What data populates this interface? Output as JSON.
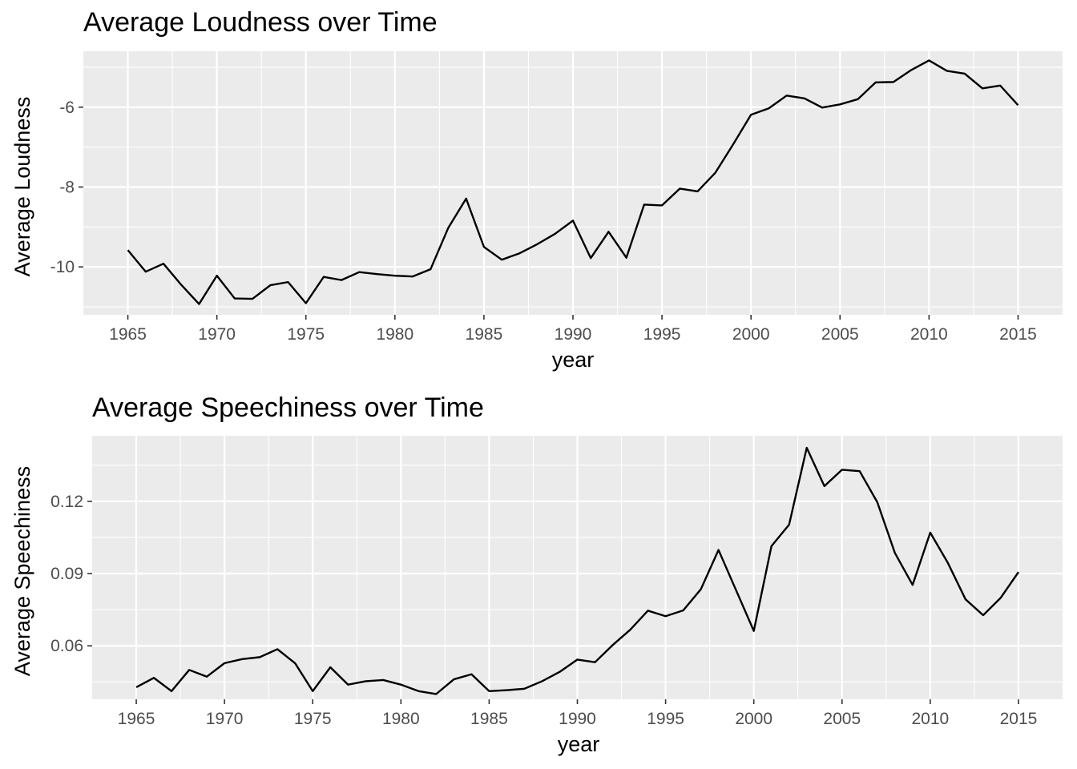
{
  "chart_data": [
    {
      "type": "line",
      "title": "Average Loudness over Time",
      "xlabel": "year",
      "ylabel": "Average Loudness",
      "xlim": [
        1962.5,
        1917.5
      ],
      "ylim": [
        -11.2,
        -4.6
      ],
      "x_ticks": [
        1965,
        1970,
        1975,
        1980,
        1985,
        1990,
        1995,
        2000,
        2005,
        2010,
        2015
      ],
      "x_tick_labels": [
        "1965",
        "1970",
        "1975",
        "1980",
        "1985",
        "1990",
        "1995",
        "2000",
        "2005",
        "2010",
        "2015"
      ],
      "y_ticks": [
        -10,
        -8,
        -6
      ],
      "y_tick_labels": [
        "-10",
        "-8",
        "-6"
      ],
      "grid": true,
      "colors": {
        "panel": "#ebebeb",
        "grid": "#ffffff",
        "line": "#000000"
      },
      "x": [
        1965,
        1966,
        1967,
        1968,
        1969,
        1970,
        1971,
        1972,
        1973,
        1974,
        1975,
        1976,
        1977,
        1978,
        1979,
        1980,
        1981,
        1982,
        1983,
        1984,
        1985,
        1986,
        1987,
        1988,
        1989,
        1990,
        1991,
        1992,
        1993,
        1994,
        1995,
        1996,
        1997,
        1998,
        1999,
        2000,
        2001,
        2002,
        2003,
        2004,
        2005,
        2006,
        2007,
        2008,
        2009,
        2010,
        2011,
        2012,
        2013,
        2014,
        2015
      ],
      "series": [
        {
          "values": [
            -9.58,
            -10.12,
            -9.92,
            -10.45,
            -10.93,
            -10.22,
            -10.79,
            -10.8,
            -10.46,
            -10.38,
            -10.91,
            -10.25,
            -10.33,
            -10.13,
            -10.18,
            -10.22,
            -10.24,
            -10.06,
            -9.02,
            -8.29,
            -9.5,
            -9.82,
            -9.66,
            -9.43,
            -9.17,
            -8.84,
            -9.78,
            -9.12,
            -9.77,
            -8.44,
            -8.46,
            -8.04,
            -8.11,
            -7.64,
            -6.93,
            -6.19,
            -6.03,
            -5.71,
            -5.78,
            -6.01,
            -5.93,
            -5.8,
            -5.38,
            -5.37,
            -5.07,
            -4.83,
            -5.09,
            -5.16,
            -5.53,
            -5.46,
            -5.95
          ]
        }
      ]
    },
    {
      "type": "line",
      "title": "Average Speechiness over Time",
      "xlabel": "year",
      "ylabel": "Average Speechiness",
      "xlim": [
        1962.5,
        2017.5
      ],
      "ylim": [
        0.0378,
        0.1472
      ],
      "x_ticks": [
        1965,
        1970,
        1975,
        1980,
        1985,
        1990,
        1995,
        2000,
        2005,
        2010,
        2015
      ],
      "x_tick_labels": [
        "1965",
        "1970",
        "1975",
        "1980",
        "1985",
        "1990",
        "1995",
        "2000",
        "2005",
        "2010",
        "2015"
      ],
      "y_ticks": [
        0.06,
        0.09,
        0.12
      ],
      "y_tick_labels": [
        "0.06",
        "0.09",
        "0.12"
      ],
      "grid": true,
      "colors": {
        "panel": "#ebebeb",
        "grid": "#ffffff",
        "line": "#000000"
      },
      "x": [
        1965,
        1966,
        1967,
        1968,
        1969,
        1970,
        1971,
        1972,
        1973,
        1974,
        1975,
        1976,
        1977,
        1978,
        1979,
        1980,
        1981,
        1982,
        1983,
        1984,
        1985,
        1986,
        1987,
        1988,
        1989,
        1990,
        1991,
        1992,
        1993,
        1994,
        1995,
        1996,
        1997,
        1998,
        1999,
        2000,
        2001,
        2002,
        2003,
        2004,
        2005,
        2006,
        2007,
        2008,
        2009,
        2010,
        2011,
        2012,
        2013,
        2014,
        2015
      ],
      "series": [
        {
          "values": [
            0.0428,
            0.0467,
            0.0412,
            0.05,
            0.0472,
            0.0528,
            0.0545,
            0.0553,
            0.0586,
            0.0528,
            0.0412,
            0.0511,
            0.0439,
            0.0453,
            0.0458,
            0.0439,
            0.0412,
            0.04,
            0.0461,
            0.0482,
            0.0412,
            0.0416,
            0.0422,
            0.0453,
            0.0492,
            0.0543,
            0.0532,
            0.0603,
            0.0667,
            0.0746,
            0.0723,
            0.0747,
            0.0835,
            0.0998,
            0.083,
            0.0662,
            0.1014,
            0.1103,
            0.1422,
            0.1263,
            0.1331,
            0.1325,
            0.1196,
            0.0985,
            0.0853,
            0.107,
            0.0944,
            0.0793,
            0.0727,
            0.08,
            0.0906
          ]
        }
      ]
    }
  ]
}
